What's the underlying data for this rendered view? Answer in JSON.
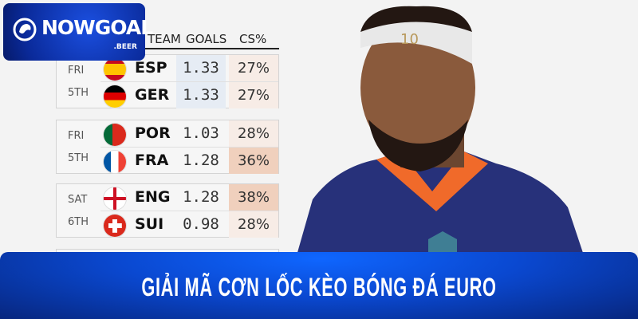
{
  "logo": {
    "name": "NOWGOAL",
    "tld": ".BEER"
  },
  "table": {
    "headers": {
      "team": "TEAM",
      "goals": "GOALS",
      "cs": "CS%"
    },
    "groups": [
      {
        "day": "FRI",
        "date": "5TH",
        "rows": [
          {
            "team": "ESP",
            "flag": "spain",
            "goals": "1.33",
            "cs": "27%"
          },
          {
            "team": "GER",
            "flag": "germany",
            "goals": "1.33",
            "cs": "27%"
          }
        ]
      },
      {
        "day": "FRI",
        "date": "5TH",
        "rows": [
          {
            "team": "POR",
            "flag": "portugal",
            "goals": "1.03",
            "cs": "28%"
          },
          {
            "team": "FRA",
            "flag": "france",
            "goals": "1.28",
            "cs": "36%"
          }
        ]
      },
      {
        "day": "SAT",
        "date": "6TH",
        "rows": [
          {
            "team": "ENG",
            "flag": "england",
            "goals": "1.28",
            "cs": "38%"
          },
          {
            "team": "SUI",
            "flag": "switzerland",
            "goals": "0.98",
            "cs": "28%"
          }
        ]
      }
    ]
  },
  "player": {
    "shirt_number": "10"
  },
  "banner": {
    "title": "GIẢI MÃ CƠN LỐC KÈO BÓNG ĐÁ EURO"
  },
  "colors": {
    "banner": "#0a48d0",
    "logo_bg": "#0a2a9a",
    "cs_high": "#f1d2c0",
    "goals_tint": "#e6ecf4"
  }
}
